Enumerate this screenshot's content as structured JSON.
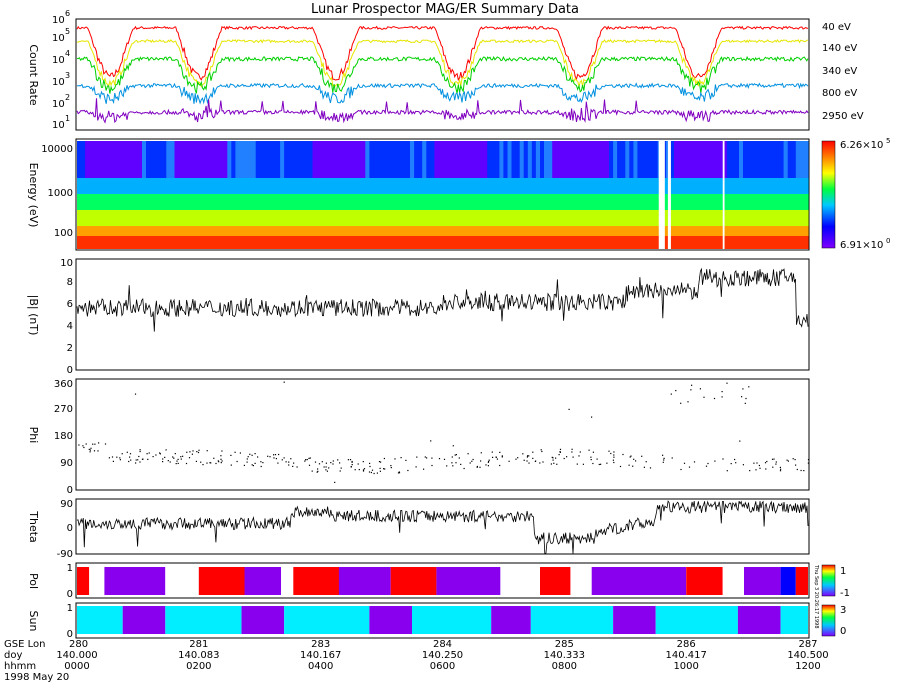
{
  "title": "Lunar Prospector MAG/ER Summary Data",
  "footer": {
    "row_labels": [
      "GSE Lon",
      "doy",
      "hhmm",
      "1998 May 20"
    ],
    "lon": [
      "280",
      "281",
      "283",
      "284",
      "285",
      "286",
      "287"
    ],
    "doy": [
      "140.000",
      "140.083",
      "140.167",
      "140.250",
      "140.333",
      "140.417",
      "140.500"
    ],
    "hhmm": [
      "0000",
      "0200",
      "0400",
      "0600",
      "0800",
      "1000",
      "1200"
    ]
  },
  "chart_data": [
    {
      "id": "count_rate",
      "type": "line",
      "ylabel": "Count Rate",
      "yscale": "log",
      "ylim_exp": [
        1,
        6
      ],
      "ytick_labels": [
        "10",
        "10",
        "10",
        "10",
        "10",
        "10"
      ],
      "ytick_exps": [
        "1",
        "2",
        "3",
        "4",
        "5",
        "6"
      ],
      "series": [
        {
          "name": "40 eV",
          "color": "#ff0000",
          "base": 5.6,
          "dip": 3.4
        },
        {
          "name": "140 eV",
          "color": "#e6e600",
          "base": 5.0,
          "dip": 3.1
        },
        {
          "name": "340 eV",
          "color": "#00d000",
          "base": 4.2,
          "dip": 2.9
        },
        {
          "name": "800 eV",
          "color": "#0090e0",
          "base": 3.0,
          "dip": 2.4
        },
        {
          "name": "2950 eV",
          "color": "#8000c0",
          "base": 1.8,
          "dip": 1.6
        }
      ],
      "dip_times_hours": [
        0.55,
        2.0,
        4.25,
        6.25,
        8.25,
        10.2
      ]
    },
    {
      "id": "spectrogram",
      "type": "heatmap",
      "ylabel": "Energy (eV)",
      "ytick_labels": [
        "10000",
        "1000",
        "100"
      ],
      "colorbar_max": "6.26×10",
      "colorbar_max_exp": "5",
      "colorbar_min": "6.91×10",
      "colorbar_min_exp": "0"
    },
    {
      "id": "bmag",
      "type": "line",
      "ylabel": "|B| (nT)",
      "ylim": [
        0,
        10
      ],
      "ytick_labels": [
        "0",
        "2",
        "4",
        "6",
        "8",
        "10"
      ]
    },
    {
      "id": "phi",
      "type": "scatter",
      "ylabel": "Phi",
      "ylim": [
        0,
        360
      ],
      "ytick_labels": [
        "0",
        "90",
        "180",
        "270",
        "360"
      ]
    },
    {
      "id": "theta",
      "type": "line",
      "ylabel": "Theta",
      "ylim": [
        -90,
        90
      ],
      "ytick_labels": [
        "-90",
        "0",
        "90"
      ]
    },
    {
      "id": "pol",
      "type": "heatmap",
      "ylabel": "Pol",
      "ytick_labels": [
        "0",
        "1"
      ],
      "colorbar_labels": [
        "1",
        "-1"
      ],
      "side_text": "Thu Sep 3 20:26:17 1998",
      "segments": [
        {
          "start": 0.0,
          "end": 0.2,
          "color": "#ff0000"
        },
        {
          "start": 0.2,
          "end": 0.45,
          "color": "#ffffff"
        },
        {
          "start": 0.45,
          "end": 1.45,
          "color": "#8800ee"
        },
        {
          "start": 1.45,
          "end": 2.0,
          "color": "#ffffff"
        },
        {
          "start": 2.0,
          "end": 2.75,
          "color": "#ff0000"
        },
        {
          "start": 2.75,
          "end": 3.35,
          "color": "#8800ee"
        },
        {
          "start": 3.35,
          "end": 3.55,
          "color": "#ffffff"
        },
        {
          "start": 3.55,
          "end": 4.3,
          "color": "#ff0000"
        },
        {
          "start": 4.3,
          "end": 5.15,
          "color": "#8800ee"
        },
        {
          "start": 5.15,
          "end": 5.9,
          "color": "#ff0000"
        },
        {
          "start": 5.9,
          "end": 6.95,
          "color": "#8800ee"
        },
        {
          "start": 6.95,
          "end": 7.6,
          "color": "#ffffff"
        },
        {
          "start": 7.6,
          "end": 8.1,
          "color": "#ff0000"
        },
        {
          "start": 8.1,
          "end": 8.45,
          "color": "#ffffff"
        },
        {
          "start": 8.45,
          "end": 10.0,
          "color": "#8800ee"
        },
        {
          "start": 10.0,
          "end": 10.6,
          "color": "#ff0000"
        },
        {
          "start": 10.6,
          "end": 10.95,
          "color": "#ffffff"
        },
        {
          "start": 10.95,
          "end": 11.55,
          "color": "#8800ee"
        },
        {
          "start": 11.55,
          "end": 11.8,
          "color": "#0000ff"
        },
        {
          "start": 11.8,
          "end": 12.0,
          "color": "#ff0000"
        }
      ]
    },
    {
      "id": "sun",
      "type": "heatmap",
      "ylabel": "Sun",
      "ytick_labels": [
        "0",
        "1"
      ],
      "colorbar_labels": [
        "3",
        "0"
      ],
      "segments": [
        {
          "start": 0.0,
          "end": 0.75,
          "color": "#00eeff"
        },
        {
          "start": 0.75,
          "end": 1.45,
          "color": "#8800ee"
        },
        {
          "start": 1.45,
          "end": 2.7,
          "color": "#00eeff"
        },
        {
          "start": 2.7,
          "end": 3.4,
          "color": "#8800ee"
        },
        {
          "start": 3.4,
          "end": 4.8,
          "color": "#00eeff"
        },
        {
          "start": 4.8,
          "end": 5.5,
          "color": "#8800ee"
        },
        {
          "start": 5.5,
          "end": 6.8,
          "color": "#00eeff"
        },
        {
          "start": 6.8,
          "end": 7.45,
          "color": "#8800ee"
        },
        {
          "start": 7.45,
          "end": 8.8,
          "color": "#00eeff"
        },
        {
          "start": 8.8,
          "end": 9.5,
          "color": "#8800ee"
        },
        {
          "start": 9.5,
          "end": 10.85,
          "color": "#00eeff"
        },
        {
          "start": 10.85,
          "end": 11.55,
          "color": "#8800ee"
        },
        {
          "start": 11.55,
          "end": 12.0,
          "color": "#00eeff"
        }
      ]
    }
  ]
}
